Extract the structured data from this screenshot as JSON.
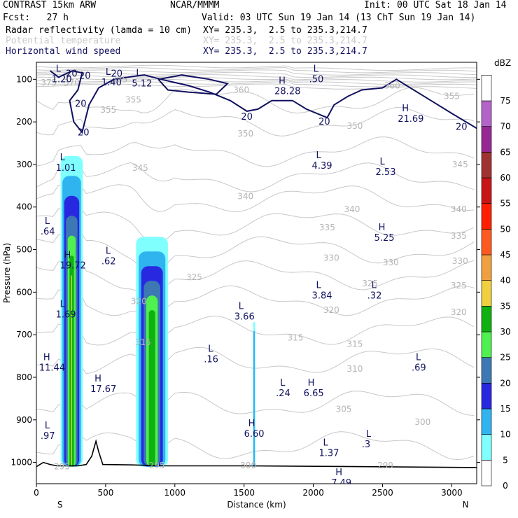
{
  "header": {
    "model": "CONTRAST 15km ARW",
    "org": "NCAR/MMMM",
    "init": "Init: 00 UTC Sat 18 Jan 14",
    "fcst": "Fcst:   27 h",
    "valid": "Valid: 03 UTC Sun 19 Jan 14 (13 ChT Sun 19 Jan 14)",
    "fields": [
      {
        "name": "Radar reflectivity (lamda = 10 cm)",
        "xy": "XY= 235.3,  2.5 to 235.3,214.7",
        "color": "#000000"
      },
      {
        "name": "Potential temperature",
        "xy": "XY= 235.3,  2.5 to 235.3,214.7",
        "color": "#c8c8c8"
      },
      {
        "name": "Horizontal wind speed",
        "xy": "XY= 235.3,  2.5 to 235.3,214.7",
        "color": "#101060"
      }
    ]
  },
  "chart_data": {
    "type": "cross-section contour",
    "xlabel": "Distance (km)",
    "ylabel": "Pressure (hPa)",
    "xlim": [
      0,
      3180
    ],
    "ylim": [
      1050,
      60
    ],
    "x_ticks": [
      0,
      500,
      1000,
      1500,
      2000,
      2500,
      3000
    ],
    "y_ticks": [
      100,
      200,
      300,
      400,
      500,
      600,
      700,
      800,
      900,
      1000
    ],
    "endpoints": {
      "left": "S",
      "right": "N"
    },
    "colorbar": {
      "unit": "dBZ",
      "levels": [
        0,
        5,
        10,
        15,
        20,
        25,
        30,
        35,
        40,
        45,
        50,
        55,
        60,
        65,
        70,
        75
      ],
      "colors": [
        "#ffffff",
        "#80ffff",
        "#30b4f0",
        "#2828e0",
        "#3c78b4",
        "#50f050",
        "#10b010",
        "#f0d040",
        "#f0a040",
        "#ff5a1e",
        "#ff1e00",
        "#c81414",
        "#a03232",
        "#962896",
        "#b464c8",
        "#ffffff"
      ]
    },
    "theta_labels": [
      {
        "text": "375",
        "x": 90,
        "p": 108
      },
      {
        "text": "370",
        "x": 255,
        "p": 108
      },
      {
        "text": "365",
        "x": 600,
        "p": 100
      },
      {
        "text": "360",
        "x": 1480,
        "p": 125
      },
      {
        "text": "360",
        "x": 2570,
        "p": 115
      },
      {
        "text": "355",
        "x": 520,
        "p": 172
      },
      {
        "text": "355",
        "x": 700,
        "p": 148
      },
      {
        "text": "355",
        "x": 3000,
        "p": 140
      },
      {
        "text": "350",
        "x": 1510,
        "p": 228
      },
      {
        "text": "350",
        "x": 2300,
        "p": 210
      },
      {
        "text": "345",
        "x": 750,
        "p": 308
      },
      {
        "text": "345",
        "x": 3060,
        "p": 300
      },
      {
        "text": "340",
        "x": 1510,
        "p": 375
      },
      {
        "text": "340",
        "x": 2280,
        "p": 405
      },
      {
        "text": "340",
        "x": 3050,
        "p": 405
      },
      {
        "text": "335",
        "x": 2100,
        "p": 448
      },
      {
        "text": "335",
        "x": 3050,
        "p": 468
      },
      {
        "text": "330",
        "x": 2130,
        "p": 520
      },
      {
        "text": "330",
        "x": 2560,
        "p": 530
      },
      {
        "text": "330",
        "x": 3060,
        "p": 527
      },
      {
        "text": "325",
        "x": 1140,
        "p": 565
      },
      {
        "text": "325",
        "x": 2410,
        "p": 580
      },
      {
        "text": "325",
        "x": 3050,
        "p": 585
      },
      {
        "text": "320",
        "x": 740,
        "p": 622
      },
      {
        "text": "320",
        "x": 2130,
        "p": 642
      },
      {
        "text": "320",
        "x": 3050,
        "p": 647
      },
      {
        "text": "315",
        "x": 1870,
        "p": 707
      },
      {
        "text": "315",
        "x": 770,
        "p": 718
      },
      {
        "text": "315",
        "x": 2300,
        "p": 722
      },
      {
        "text": "310",
        "x": 2300,
        "p": 780
      },
      {
        "text": "305",
        "x": 2220,
        "p": 875
      },
      {
        "text": "300",
        "x": 2790,
        "p": 905
      },
      {
        "text": "300",
        "x": 1530,
        "p": 1007
      },
      {
        "text": "299",
        "x": 2520,
        "p": 1007
      },
      {
        "text": "295",
        "x": 185,
        "p": 1010
      },
      {
        "text": "295",
        "x": 870,
        "p": 1007
      }
    ],
    "wind_labels": [
      {
        "text": "20",
        "x": 255,
        "p": 87
      },
      {
        "text": "20",
        "x": 580,
        "p": 87
      },
      {
        "text": "20",
        "x": 350,
        "p": 92
      },
      {
        "text": "20",
        "x": 320,
        "p": 158
      },
      {
        "text": "20",
        "x": 1520,
        "p": 188
      },
      {
        "text": "20",
        "x": 2080,
        "p": 200
      },
      {
        "text": "20",
        "x": 340,
        "p": 225
      },
      {
        "text": "20",
        "x": 3070,
        "p": 212
      }
    ],
    "extrema": [
      {
        "t": "L",
        "v": "1.20",
        "x": 140,
        "p": 82
      },
      {
        "t": "L",
        "v": "1.40",
        "x": 500,
        "p": 90
      },
      {
        "t": "L",
        "v": "5.12",
        "x": 720,
        "p": 92
      },
      {
        "t": "H",
        "v": "28.28",
        "x": 1750,
        "p": 110
      },
      {
        "t": "L",
        "v": ".50",
        "x": 2000,
        "p": 82
      },
      {
        "t": "H",
        "v": "21.69",
        "x": 2640,
        "p": 175
      },
      {
        "t": "L",
        "v": "1.01",
        "x": 170,
        "p": 290
      },
      {
        "t": "L",
        "v": "4.39",
        "x": 2020,
        "p": 285
      },
      {
        "t": "L",
        "v": "2.53",
        "x": 2480,
        "p": 300
      },
      {
        "t": "L",
        "v": ".64",
        "x": 60,
        "p": 440
      },
      {
        "t": "H",
        "v": "5.25",
        "x": 2470,
        "p": 455
      },
      {
        "t": "H",
        "v": "19.72",
        "x": 200,
        "p": 520
      },
      {
        "t": "L",
        "v": ".62",
        "x": 500,
        "p": 510
      },
      {
        "t": "L",
        "v": "3.84",
        "x": 2020,
        "p": 590
      },
      {
        "t": "L",
        "v": ".32",
        "x": 2420,
        "p": 590
      },
      {
        "t": "L",
        "v": "1.69",
        "x": 170,
        "p": 635
      },
      {
        "t": "L",
        "v": "3.66",
        "x": 1460,
        "p": 640
      },
      {
        "t": "L",
        "v": ".16",
        "x": 1240,
        "p": 740
      },
      {
        "t": "H",
        "v": "11.44",
        "x": 50,
        "p": 760
      },
      {
        "t": "L",
        "v": ".69",
        "x": 2740,
        "p": 760
      },
      {
        "t": "H",
        "v": "17.67",
        "x": 420,
        "p": 810
      },
      {
        "t": "L",
        "v": ".24",
        "x": 1760,
        "p": 820
      },
      {
        "t": "H",
        "v": "6.65",
        "x": 1960,
        "p": 820
      },
      {
        "t": "L",
        "v": ".97",
        "x": 60,
        "p": 920
      },
      {
        "t": "H",
        "v": "6.60",
        "x": 1530,
        "p": 915
      },
      {
        "t": "L",
        "v": ".3",
        "x": 2380,
        "p": 940
      },
      {
        "t": "L",
        "v": "1.37",
        "x": 2070,
        "p": 960
      },
      {
        "t": "H",
        "v": "7.49",
        "x": 2160,
        "p": 1030
      }
    ],
    "reflectivity_cells": [
      {
        "x0": 175,
        "x1": 335,
        "top_p": 280,
        "max_dbz": 40
      },
      {
        "x0": 720,
        "x1": 950,
        "top_p": 470,
        "max_dbz": 30
      },
      {
        "x0": 1565,
        "x1": 1580,
        "top_p": 670,
        "max_dbz": 10
      }
    ],
    "terrain": [
      [
        0,
        1010
      ],
      [
        50,
        1000
      ],
      [
        100,
        1005
      ],
      [
        150,
        1008
      ],
      [
        200,
        1008
      ],
      [
        300,
        1008
      ],
      [
        360,
        1005
      ],
      [
        400,
        985
      ],
      [
        430,
        950
      ],
      [
        450,
        975
      ],
      [
        480,
        1005
      ],
      [
        700,
        1006
      ],
      [
        900,
        1008
      ],
      [
        1500,
        1008
      ],
      [
        2400,
        1010
      ],
      [
        3180,
        1012
      ]
    ]
  }
}
